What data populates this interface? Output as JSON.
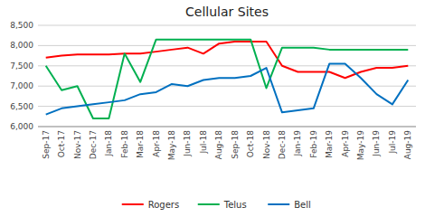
{
  "chart_data": {
    "type": "line",
    "title": "Cellular Sites",
    "categories": [
      "Sep-17",
      "Oct-17",
      "Nov-17",
      "Dec-17",
      "Jan-18",
      "Feb-18",
      "Mar-18",
      "Apr-18",
      "May-18",
      "Jun-18",
      "Jul-18",
      "Aug-18",
      "Sep-18",
      "Oct-18",
      "Nov-18",
      "Dec-18",
      "Jan-19",
      "Feb-19",
      "Mar-19",
      "Apr-19",
      "May-19",
      "Jun-19",
      "Jul-19",
      "Aug-19"
    ],
    "series": [
      {
        "name": "Rogers",
        "color": "#FF0000",
        "values": [
          7700,
          7750,
          7780,
          7780,
          7780,
          7800,
          7800,
          7850,
          7900,
          7950,
          7800,
          8050,
          8100,
          8100,
          8100,
          7500,
          7350,
          7350,
          7350,
          7200,
          7350,
          7450,
          7450,
          7500
        ]
      },
      {
        "name": "Telus",
        "color": "#00B050",
        "values": [
          7500,
          6900,
          7000,
          6200,
          6200,
          7800,
          7100,
          8150,
          8150,
          8150,
          8150,
          8150,
          8150,
          8150,
          6950,
          7950,
          7950,
          7950,
          7900,
          7900,
          7900,
          7900,
          7900,
          7900
        ]
      },
      {
        "name": "Bell",
        "color": "#0070C0",
        "values": [
          6300,
          6450,
          6500,
          6550,
          6600,
          6650,
          6800,
          6850,
          7050,
          7000,
          7150,
          7200,
          7200,
          7250,
          7450,
          6350,
          6400,
          6450,
          7550,
          7550,
          7200,
          6800,
          6550,
          7150
        ]
      }
    ],
    "ylim": [
      6000,
      8500
    ],
    "yticks": [
      {
        "value": 6000,
        "label": "6,000"
      },
      {
        "value": 6500,
        "label": "6,500"
      },
      {
        "value": 7000,
        "label": "7,000"
      },
      {
        "value": 7500,
        "label": "7,500"
      },
      {
        "value": 8000,
        "label": "8,000"
      },
      {
        "value": 8500,
        "label": "8,500"
      }
    ],
    "grid": true,
    "legend": "bottom"
  }
}
